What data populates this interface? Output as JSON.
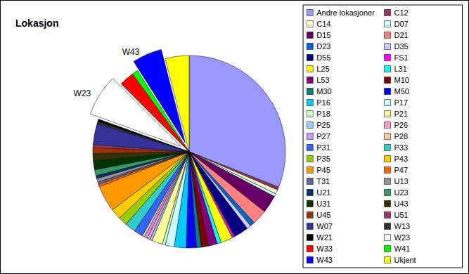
{
  "chart_data": {
    "type": "pie",
    "title": "Lokasjon",
    "categories": [
      "Andre lokasjoner",
      "C12",
      "C14",
      "D07",
      "D15",
      "D21",
      "D23",
      "D35",
      "D55",
      "FS1",
      "L25",
      "L31",
      "L53",
      "M10",
      "M30",
      "M50",
      "P16",
      "P17",
      "P18",
      "P21",
      "P25",
      "P26",
      "P27",
      "P28",
      "P31",
      "P33",
      "P35",
      "P43",
      "P45",
      "P47",
      "T31",
      "U13",
      "U21",
      "U23",
      "U31",
      "U43",
      "U45",
      "U51",
      "W07",
      "W13",
      "W21",
      "W23",
      "W33",
      "W41",
      "W43",
      "Ukjent"
    ],
    "values": [
      31,
      0.5,
      0.7,
      0.5,
      3,
      2.5,
      0.8,
      0.7,
      2.5,
      0.4,
      2,
      0.7,
      1.5,
      1.2,
      0.8,
      1.7,
      2,
      1.5,
      0.5,
      1.8,
      0.4,
      0.5,
      0.5,
      0.4,
      1.5,
      1.8,
      1.5,
      1.8,
      4.4,
      0.4,
      0.4,
      0.6,
      0.5,
      1,
      1.5,
      1.2,
      1,
      0.5,
      3.5,
      0.4,
      0.4,
      7,
      2.5,
      1,
      5,
      4
    ],
    "colors": [
      "#9999FF",
      "#993366",
      "#FFFFCC",
      "#CCFFFF",
      "#660066",
      "#FF8080",
      "#0066CC",
      "#CCCCFF",
      "#000080",
      "#FF00FF",
      "#FFFF00",
      "#00FFFF",
      "#800080",
      "#800000",
      "#008080",
      "#0000FF",
      "#00CCFF",
      "#CCFFFF",
      "#CCFFCC",
      "#FFFF99",
      "#99CCFF",
      "#FF99CC",
      "#CC99FF",
      "#FFCC99",
      "#3366FF",
      "#33CCCC",
      "#99CC00",
      "#FFCC00",
      "#FF9900",
      "#FF6600",
      "#666699",
      "#969696",
      "#003366",
      "#339966",
      "#003300",
      "#333300",
      "#993300",
      "#993366",
      "#333399",
      "#333333",
      "#000000",
      "#FFFFFF",
      "#FF0000",
      "#00FF00",
      "#0000FF",
      "#FFFF00"
    ],
    "annotations": [
      "W23",
      "W43"
    ],
    "legend": "right"
  }
}
